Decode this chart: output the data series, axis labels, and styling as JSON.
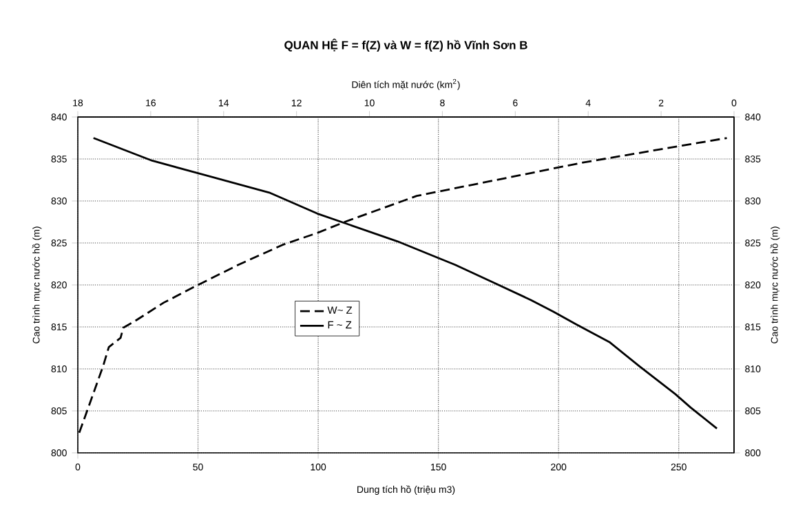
{
  "chart_data": {
    "type": "line",
    "title": "QUAN HỆ F =  f(Z) và W =  f(Z) hồ Vĩnh Sơn B",
    "xlabel": "Dung tích hồ  (triệu m3)",
    "x2label": "Diên tích mặt nước (km$^{2}$)",
    "ylabel": "Cao trình mực nước hồ (m)",
    "y2label": "Cao trình mực nước hồ  (m)",
    "xlim": [
      0,
      273
    ],
    "xticks": [
      0,
      50,
      100,
      150,
      200,
      250
    ],
    "x2lim": [
      18,
      0
    ],
    "x2ticks": [
      18,
      16,
      14,
      12,
      10,
      8,
      6,
      4,
      2,
      0
    ],
    "ylim": [
      800,
      840
    ],
    "yticks": [
      800,
      805,
      810,
      815,
      820,
      825,
      830,
      835,
      840
    ],
    "y2lim": [
      800,
      840
    ],
    "y2ticks": [
      800,
      805,
      810,
      815,
      820,
      825,
      830,
      835,
      840
    ],
    "grid": true,
    "legend": "center",
    "series": [
      {
        "name": "W~ Z",
        "color": "#000000",
        "line_style": "dashed",
        "x": [
          0.6,
          4,
          10.6,
          12.9,
          17.8,
          18.9,
          23.8,
          35.8,
          50,
          66.8,
          85.4,
          99.7,
          111,
          141,
          210.6,
          270
        ],
        "values": [
          802.4,
          805.1,
          810.4,
          812.6,
          813.7,
          814.9,
          815.7,
          817.9,
          820,
          822.4,
          824.8,
          826.2,
          827.5,
          830.6,
          834.6,
          837.5
        ]
      },
      {
        "name": "F ~ Z",
        "color": "#000000",
        "line_style": "solid",
        "axis": "x2",
        "x": [
          17.57,
          15.96,
          12.75,
          11.43,
          10.7,
          9.24,
          8.22,
          7.65,
          6.61,
          5.57,
          4.95,
          4.33,
          3.42,
          2.59,
          1.61,
          1.19,
          0.47
        ],
        "values": [
          837.5,
          834.8,
          831,
          828.5,
          827.4,
          825.2,
          823.4,
          822.4,
          820.3,
          818.2,
          816.8,
          815.3,
          813.2,
          810.3,
          807,
          805.4,
          802.9
        ]
      }
    ]
  }
}
